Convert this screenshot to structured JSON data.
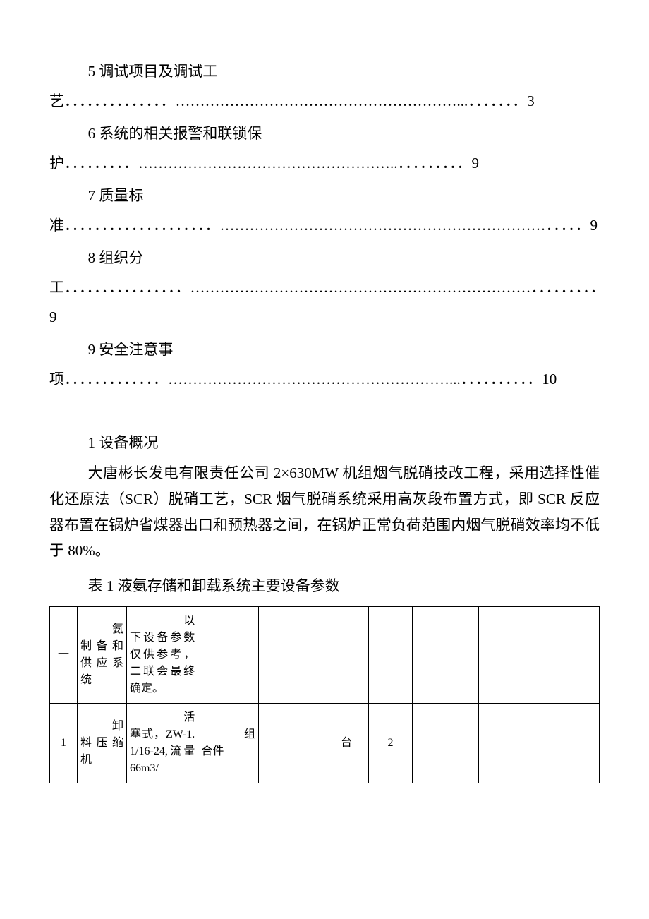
{
  "toc": [
    {
      "label": "5 调试项目及调试工艺",
      "dots": "．．．．．．．．．．．．．．…………………………………………………...．．．．．．．",
      "page": "3"
    },
    {
      "label": "6 系统的相关报警和联锁保护",
      "dots": "．．．．．．．．．……………………………………………..．．．．．．．．．",
      "page": "9"
    },
    {
      "label": "7 质量标准",
      "dots": "．．．．．．．．．．．．．．．．．．．．…………………………………………………………．．．．．",
      "page": "9"
    },
    {
      "label": "8 组织分工",
      "dots": "．．．．．．．．．．．．．．．．……………………………………………………………．．．．．．．．．",
      "page": "9"
    },
    {
      "label": "9 安全注意事项",
      "dots": "．．．．．．．．．．．．．…………………………………………………...．．．．．．．．．．",
      "page": "10"
    }
  ],
  "section1": {
    "heading": "1 设备概况",
    "para": "大唐彬长发电有限责任公司 2×630MW 机组烟气脱硝技改工程，采用选择性催化还原法（SCR）脱硝工艺，SCR 烟气脱硝系统采用高灰段布置方式，即 SCR 反应器布置在锅炉省煤器出口和预热器之间，在锅炉正常负荷范围内烟气脱硝效率均不低于 80%。",
    "table_caption": "表 1 液氨存储和卸载系统主要设备参数",
    "table": {
      "rows": [
        {
          "c0": "一",
          "c1_lead": "氨",
          "c1_rest": "制备和供应系统",
          "c2_lead": "以",
          "c2_rest": "下设备参数仅供参考，二联会最终确定。",
          "c3": "",
          "c4": "",
          "c5": "",
          "c6": "",
          "c7": "",
          "c8": ""
        },
        {
          "c0": "1",
          "c1_lead": "卸",
          "c1_rest": "料压缩机",
          "c2_lead": "活",
          "c2_rest": "塞式，ZW-1.1/16-24,流量66m3/",
          "c3_lead": "组",
          "c3_rest": "合件",
          "c4": "",
          "c5": "台",
          "c6": "2",
          "c7": "",
          "c8": ""
        }
      ]
    }
  },
  "colors": {
    "text": "#000000",
    "background": "#ffffff",
    "border": "#000000",
    "watermark": "#e9e9e9"
  }
}
